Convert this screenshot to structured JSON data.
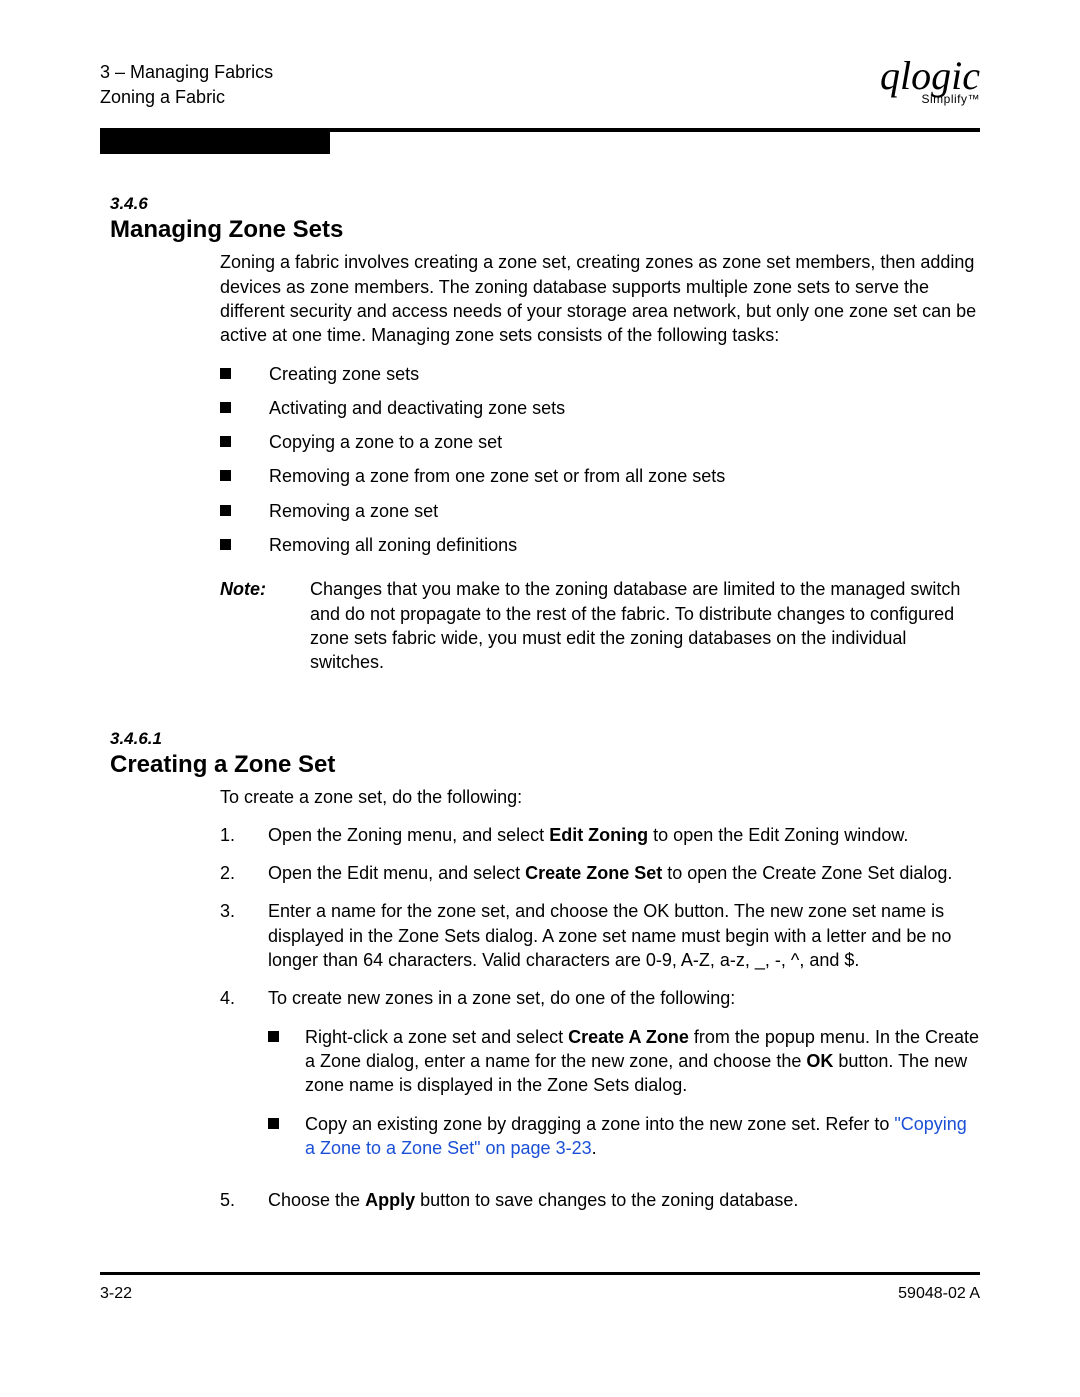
{
  "header": {
    "line1": "3 – Managing Fabrics",
    "line2": "Zoning a Fabric"
  },
  "logo": {
    "main": "qlogic",
    "sub": "Simplify™"
  },
  "sec1": {
    "num": "3.4.6",
    "title": "Managing Zone Sets",
    "intro": "Zoning a fabric involves creating a zone set, creating zones as zone set members, then adding devices as zone members. The zoning database supports multiple zone sets to serve the different security and access needs of your storage area network, but only one zone set can be active at one time. Managing zone sets consists of the following tasks:",
    "bullets": [
      "Creating zone sets",
      "Activating and deactivating zone sets",
      "Copying a zone to a zone set",
      "Removing a zone from one zone set or from all zone sets",
      "Removing a zone set",
      "Removing all zoning definitions"
    ],
    "note_label": "Note:",
    "note_text": "Changes that you make to the zoning database are limited to the managed switch and do not propagate to the rest of the fabric. To distribute changes to configured zone sets fabric wide, you must edit the zoning databases on the individual switches."
  },
  "sec2": {
    "num": "3.4.6.1",
    "title": "Creating a Zone Set",
    "intro": "To create a zone set, do the following:",
    "step1_a": "Open the Zoning menu, and select ",
    "step1_b": "Edit Zoning",
    "step1_c": " to open the Edit Zoning window.",
    "step2_a": "Open the Edit menu, and select ",
    "step2_b": "Create Zone Set",
    "step2_c": " to open the Create Zone Set dialog.",
    "step3": "Enter a name for the zone set, and choose the OK button. The new zone set name is displayed in the Zone Sets dialog. A zone set name must begin with a letter and be no longer than 64 characters. Valid characters are 0-9, A-Z, a-z, _, -, ^, and $.",
    "step4": "To create new zones in a zone set, do one of the following:",
    "step4_sub1_a": "Right-click a zone set and select ",
    "step4_sub1_b": "Create A Zone",
    "step4_sub1_c": " from the popup menu. In the Create a Zone dialog, enter a name for the new zone, and choose the ",
    "step4_sub1_d": "OK",
    "step4_sub1_e": " button. The new zone name is displayed in the Zone Sets dialog.",
    "step4_sub2_a": "Copy an existing zone by dragging a zone into the new zone set. Refer to ",
    "step4_sub2_link": "\"Copying a Zone to a Zone Set\" on page 3-23",
    "step4_sub2_b": ".",
    "step5_a": "Choose the ",
    "step5_b": "Apply",
    "step5_c": " button to save changes to the zoning database.",
    "n1": "1.",
    "n2": "2.",
    "n3": "3.",
    "n4": "4.",
    "n5": "5."
  },
  "footer": {
    "left": "3-22",
    "right": "59048-02  A"
  },
  "colors": {
    "link": "#1a4fd6"
  }
}
